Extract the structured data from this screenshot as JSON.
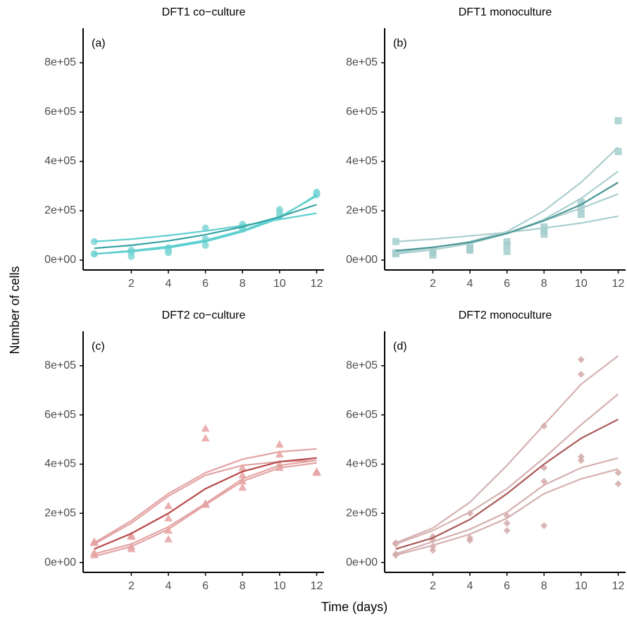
{
  "y_label": "Number of cells",
  "x_label": "Time (days)",
  "chart_data": [
    {
      "type": "line",
      "title": "DFT1 co−culture",
      "annotation": "(a)",
      "x": [
        0,
        2,
        4,
        6,
        8,
        10,
        12
      ],
      "xlim": [
        -0.6,
        12.4
      ],
      "ylim": [
        -40000,
        940000
      ],
      "xticks": [
        2,
        4,
        6,
        8,
        10,
        12
      ],
      "yticks": [
        {
          "value": 0,
          "label": "0e+00"
        },
        {
          "value": 200000,
          "label": "2e+05"
        },
        {
          "value": 400000,
          "label": "4e+05"
        },
        {
          "value": 600000,
          "label": "6e+05"
        },
        {
          "value": 800000,
          "label": "8e+05"
        }
      ],
      "series": [
        {
          "color": "#5fcfcf",
          "values": [
            75000,
            85000,
            100000,
            118000,
            140000,
            165000,
            190000
          ]
        },
        {
          "color": "#5fcfcf",
          "values": [
            25000,
            35000,
            50000,
            75000,
            115000,
            170000,
            265000
          ]
        },
        {
          "color": "#5fcfcf",
          "values": [
            25000,
            38000,
            55000,
            80000,
            120000,
            175000,
            260000
          ]
        },
        {
          "color": "#36a3a3",
          "values": [
            48000,
            60000,
            78000,
            103000,
            135000,
            175000,
            225000
          ]
        }
      ],
      "points": {
        "marker": "circle",
        "color": "#7fd6d6",
        "x": [
          0,
          0,
          0,
          2,
          2,
          2,
          4,
          4,
          4,
          6,
          6,
          6,
          8,
          8,
          8,
          10,
          10,
          10,
          12,
          12,
          12
        ],
        "values": [
          75000,
          25000,
          25000,
          40000,
          30000,
          15000,
          50000,
          40000,
          30000,
          130000,
          85000,
          60000,
          145000,
          135000,
          125000,
          205000,
          195000,
          180000,
          275000,
          270000,
          265000
        ]
      }
    },
    {
      "type": "line",
      "title": "DFT1 monoculture",
      "annotation": "(b)",
      "x": [
        0,
        2,
        4,
        6,
        8,
        10,
        12
      ],
      "xlim": [
        -0.6,
        12.4
      ],
      "ylim": [
        -40000,
        940000
      ],
      "xticks": [
        2,
        4,
        6,
        8,
        10,
        12
      ],
      "yticks": [
        {
          "value": 0,
          "label": "0e+00"
        },
        {
          "value": 200000,
          "label": "2e+05"
        },
        {
          "value": 400000,
          "label": "4e+05"
        },
        {
          "value": 600000,
          "label": "6e+05"
        },
        {
          "value": 800000,
          "label": "8e+05"
        }
      ],
      "series": [
        {
          "color": "#aacfcf",
          "values": [
            75000,
            85000,
            98000,
            112000,
            130000,
            150000,
            178000
          ]
        },
        {
          "color": "#aacfcf",
          "values": [
            30000,
            50000,
            75000,
            115000,
            200000,
            315000,
            458000
          ]
        },
        {
          "color": "#aacfcf",
          "values": [
            35000,
            52000,
            72000,
            108000,
            165000,
            250000,
            360000
          ]
        },
        {
          "color": "#aacfcf",
          "values": [
            25000,
            42000,
            67000,
            108000,
            160000,
            210000,
            268000
          ]
        },
        {
          "color": "#4c9797",
          "values": [
            38000,
            52000,
            72000,
            108000,
            160000,
            225000,
            315000
          ]
        }
      ],
      "points": {
        "marker": "square",
        "color": "#a3cccc",
        "x": [
          0,
          0,
          0,
          2,
          2,
          2,
          4,
          4,
          4,
          6,
          6,
          6,
          8,
          8,
          8,
          10,
          10,
          10,
          12,
          12
        ],
        "values": [
          75000,
          30000,
          25000,
          40000,
          30000,
          20000,
          55000,
          45000,
          40000,
          75000,
          60000,
          35000,
          135000,
          120000,
          105000,
          235000,
          210000,
          185000,
          565000,
          440000
        ]
      }
    },
    {
      "type": "line",
      "title": "DFT2 co−culture",
      "annotation": "(c)",
      "x": [
        0,
        2,
        4,
        6,
        8,
        10,
        12
      ],
      "xlim": [
        -0.6,
        12.4
      ],
      "ylim": [
        -40000,
        940000
      ],
      "xticks": [
        2,
        4,
        6,
        8,
        10,
        12
      ],
      "yticks": [
        {
          "value": 0,
          "label": "0e+00"
        },
        {
          "value": 200000,
          "label": "2e+05"
        },
        {
          "value": 400000,
          "label": "4e+05"
        },
        {
          "value": 600000,
          "label": "6e+05"
        },
        {
          "value": 800000,
          "label": "8e+05"
        }
      ],
      "series": [
        {
          "color": "#e3a3a3",
          "values": [
            80000,
            170000,
            280000,
            365000,
            420000,
            450000,
            462000
          ]
        },
        {
          "color": "#e3a3a3",
          "values": [
            75000,
            160000,
            270000,
            355000,
            395000,
            410000,
            415000
          ]
        },
        {
          "color": "#e3a3a3",
          "values": [
            35000,
            75000,
            145000,
            240000,
            340000,
            395000,
            415000
          ]
        },
        {
          "color": "#e3a3a3",
          "values": [
            25000,
            65000,
            135000,
            235000,
            330000,
            385000,
            405000
          ]
        },
        {
          "color": "#b84848",
          "values": [
            55000,
            118000,
            200000,
            300000,
            370000,
            410000,
            425000
          ]
        }
      ],
      "points": {
        "marker": "triangle",
        "color": "#e6a2a2",
        "x": [
          0,
          0,
          0,
          0,
          2,
          2,
          2,
          2,
          4,
          4,
          4,
          4,
          6,
          6,
          6,
          6,
          8,
          8,
          8,
          8,
          10,
          10,
          10,
          10,
          12,
          12
        ],
        "values": [
          85000,
          80000,
          40000,
          30000,
          110000,
          105000,
          65000,
          55000,
          230000,
          180000,
          130000,
          95000,
          545000,
          505000,
          240000,
          235000,
          385000,
          355000,
          330000,
          305000,
          480000,
          440000,
          400000,
          385000,
          370000,
          365000
        ]
      }
    },
    {
      "type": "line",
      "title": "DFT2 monoculture",
      "annotation": "(d)",
      "x": [
        0,
        2,
        4,
        6,
        8,
        10,
        12
      ],
      "xlim": [
        -0.6,
        12.4
      ],
      "ylim": [
        -40000,
        940000
      ],
      "xticks": [
        2,
        4,
        6,
        8,
        10,
        12
      ],
      "yticks": [
        {
          "value": 0,
          "label": "0e+00"
        },
        {
          "value": 200000,
          "label": "2e+05"
        },
        {
          "value": 400000,
          "label": "4e+05"
        },
        {
          "value": 600000,
          "label": "6e+05"
        },
        {
          "value": 800000,
          "label": "8e+05"
        }
      ],
      "series": [
        {
          "color": "#d6b0b0",
          "values": [
            80000,
            140000,
            245000,
            395000,
            560000,
            725000,
            840000
          ]
        },
        {
          "color": "#d6b0b0",
          "values": [
            75000,
            130000,
            205000,
            300000,
            425000,
            560000,
            685000
          ]
        },
        {
          "color": "#d6b0b0",
          "values": [
            35000,
            85000,
            135000,
            205000,
            315000,
            385000,
            425000
          ]
        },
        {
          "color": "#d6b0b0",
          "values": [
            30000,
            70000,
            115000,
            180000,
            280000,
            340000,
            380000
          ]
        },
        {
          "color": "#a85858",
          "values": [
            55000,
            100000,
            175000,
            280000,
            400000,
            505000,
            582000
          ]
        }
      ],
      "points": {
        "marker": "diamond",
        "color": "#d4a8a8",
        "x": [
          0,
          0,
          0,
          0,
          2,
          2,
          2,
          2,
          4,
          4,
          4,
          6,
          6,
          6,
          8,
          8,
          8,
          8,
          10,
          10,
          10,
          10,
          12,
          12
        ],
        "values": [
          80000,
          75000,
          35000,
          30000,
          105000,
          90000,
          65000,
          50000,
          200000,
          100000,
          90000,
          190000,
          160000,
          130000,
          555000,
          385000,
          330000,
          150000,
          825000,
          765000,
          430000,
          415000,
          365000,
          320000
        ]
      }
    }
  ]
}
